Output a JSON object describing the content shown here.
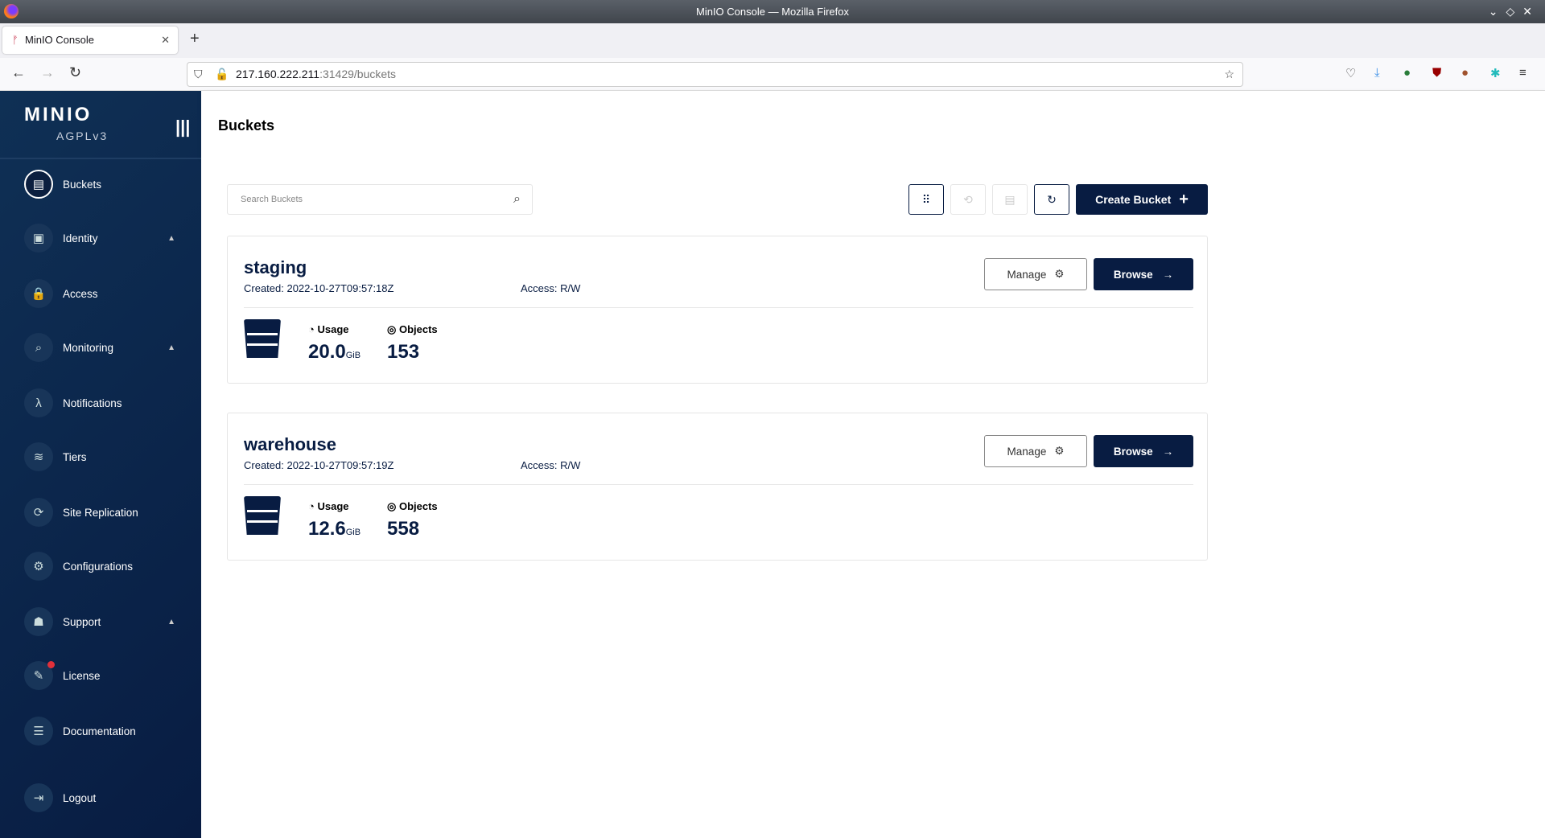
{
  "window": {
    "title": "MinIO Console — Mozilla Firefox"
  },
  "browser": {
    "tab_title": "MinIO Console",
    "url_host": "217.160.222.211",
    "url_rest": ":31429/buckets"
  },
  "sidebar": {
    "logo": "MINIO",
    "license_label": "AGPLv3",
    "items": [
      {
        "label": "Buckets",
        "icon": "bucket-icon",
        "glyph": "▤",
        "active": true
      },
      {
        "label": "Identity",
        "icon": "id-card-icon",
        "glyph": "▣",
        "expandable": true
      },
      {
        "label": "Access",
        "icon": "lock-icon",
        "glyph": "🔒"
      },
      {
        "label": "Monitoring",
        "icon": "search-chart-icon",
        "glyph": "⌕",
        "expandable": true
      },
      {
        "label": "Notifications",
        "icon": "lambda-icon",
        "glyph": "λ"
      },
      {
        "label": "Tiers",
        "icon": "layers-icon",
        "glyph": "≋"
      },
      {
        "label": "Site Replication",
        "icon": "sync-icon",
        "glyph": "⟳"
      },
      {
        "label": "Configurations",
        "icon": "gear-icon",
        "glyph": "⚙"
      },
      {
        "label": "Support",
        "icon": "support-icon",
        "glyph": "☗",
        "expandable": true
      },
      {
        "label": "License",
        "icon": "license-icon",
        "glyph": "✎",
        "badge": true
      },
      {
        "label": "Documentation",
        "icon": "document-icon",
        "glyph": "☰"
      },
      {
        "label": "Logout",
        "icon": "logout-icon",
        "glyph": "⇥"
      }
    ]
  },
  "header": {
    "title": "Buckets"
  },
  "toolbar": {
    "search_placeholder": "Search Buckets",
    "create_label": "Create Bucket"
  },
  "buckets": [
    {
      "name": "staging",
      "created": "Created: 2022-10-27T09:57:18Z",
      "access": "Access: R/W",
      "usage_label": "Usage",
      "usage": "20.0",
      "usage_unit": "GiB",
      "objects_label": "Objects",
      "objects": "153",
      "manage": "Manage",
      "browse": "Browse"
    },
    {
      "name": "warehouse",
      "created": "Created: 2022-10-27T09:57:19Z",
      "access": "Access: R/W",
      "usage_label": "Usage",
      "usage": "12.6",
      "usage_unit": "GiB",
      "objects_label": "Objects",
      "objects": "558",
      "manage": "Manage",
      "browse": "Browse"
    }
  ],
  "colors": {
    "brand": "#081c42",
    "badge": "#e0303a"
  }
}
